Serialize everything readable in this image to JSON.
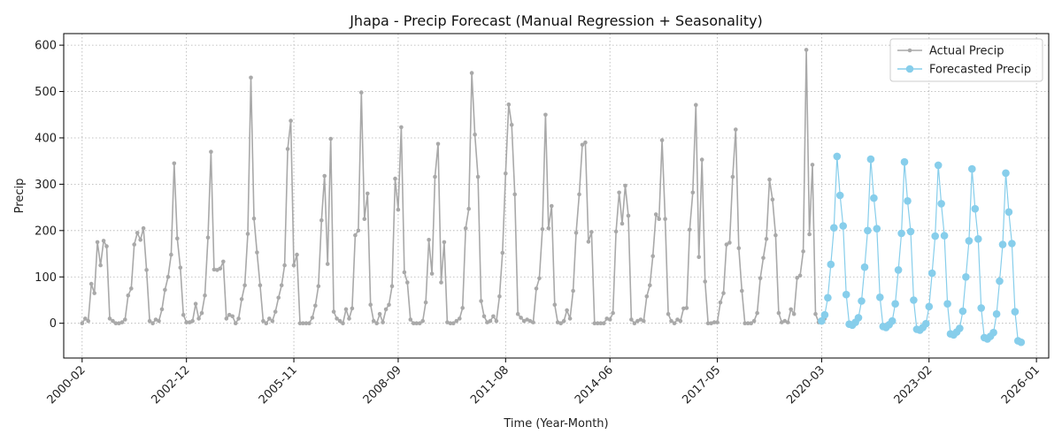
{
  "chart_data": {
    "type": "line",
    "title": "Jhapa - Precip Forecast (Manual Regression + Seasonality)",
    "xlabel": "Time (Year-Month)",
    "ylabel": "Precip",
    "xlim": [
      "1999-08",
      "2026-05"
    ],
    "ylim": [
      -75,
      625
    ],
    "x_tick_labels": [
      "2000-02",
      "2002-12",
      "2005-11",
      "2008-09",
      "2011-08",
      "2014-06",
      "2017-05",
      "2020-03",
      "2023-02",
      "2026-01"
    ],
    "y_tick_labels": [
      "0",
      "100",
      "200",
      "300",
      "400",
      "500",
      "600"
    ],
    "grid": true,
    "legend_position": "upper right",
    "series": [
      {
        "name": "Actual Precip",
        "color": "#a9a9a9",
        "marker": "small-dot",
        "start": "2000-02",
        "values": [
          0,
          10,
          5,
          85,
          65,
          175,
          125,
          178,
          166,
          10,
          5,
          0,
          0,
          2,
          8,
          60,
          75,
          170,
          195,
          180,
          205,
          115,
          5,
          0,
          8,
          5,
          30,
          72,
          100,
          148,
          345,
          183,
          120,
          18,
          2,
          2,
          5,
          42,
          10,
          22,
          60,
          185,
          370,
          116,
          115,
          118,
          133,
          10,
          18,
          15,
          0,
          10,
          52,
          82,
          193,
          530,
          226,
          153,
          82,
          5,
          0,
          10,
          5,
          25,
          55,
          82,
          125,
          376,
          437,
          125,
          148,
          0,
          0,
          0,
          0,
          12,
          38,
          80,
          222,
          318,
          128,
          398,
          25,
          10,
          5,
          0,
          30,
          10,
          32,
          190,
          200,
          498,
          225,
          280,
          40,
          5,
          0,
          20,
          2,
          30,
          40,
          80,
          312,
          245,
          423,
          110,
          88,
          8,
          0,
          0,
          0,
          5,
          45,
          180,
          107,
          316,
          387,
          88,
          175,
          2,
          0,
          0,
          5,
          10,
          33,
          205,
          247,
          540,
          407,
          316,
          48,
          15,
          2,
          5,
          15,
          5,
          58,
          152,
          323,
          472,
          428,
          278,
          20,
          12,
          5,
          8,
          5,
          2,
          75,
          97,
          203,
          450,
          205,
          253,
          40,
          2,
          0,
          5,
          28,
          10,
          70,
          195,
          278,
          385,
          390,
          176,
          197,
          0,
          0,
          0,
          0,
          10,
          8,
          22,
          198,
          282,
          215,
          297,
          232,
          8,
          0,
          5,
          8,
          5,
          58,
          82,
          145,
          235,
          225,
          395,
          225,
          20,
          5,
          0,
          8,
          5,
          32,
          33,
          202,
          282,
          471,
          143,
          353,
          90,
          0,
          0,
          2,
          2,
          45,
          65,
          170,
          174,
          316,
          418,
          162,
          70,
          0,
          0,
          0,
          5,
          22,
          97,
          141,
          182,
          310,
          267,
          190,
          22,
          2,
          5,
          2,
          30,
          20,
          98,
          103,
          155,
          590,
          192,
          342,
          20,
          2,
          5,
          10
        ]
      },
      {
        "name": "Forecasted Precip",
        "color": "#87ceeb",
        "marker": "large-dot",
        "start": "2020-03",
        "values": [
          5,
          18,
          55,
          127,
          206,
          360,
          276,
          210,
          62,
          -2,
          -4,
          2,
          12,
          48,
          121,
          200,
          354,
          270,
          204,
          56,
          -7,
          -9,
          -3,
          5,
          42,
          115,
          194,
          348,
          264,
          198,
          50,
          -13,
          -15,
          -9,
          -1,
          36,
          108,
          188,
          341,
          258,
          189,
          42,
          -23,
          -25,
          -19,
          -11,
          26,
          100,
          178,
          333,
          247,
          182,
          33,
          -31,
          -34,
          -28,
          -20,
          20,
          91,
          170,
          324,
          240,
          172,
          25,
          -38,
          -41
        ]
      }
    ]
  }
}
